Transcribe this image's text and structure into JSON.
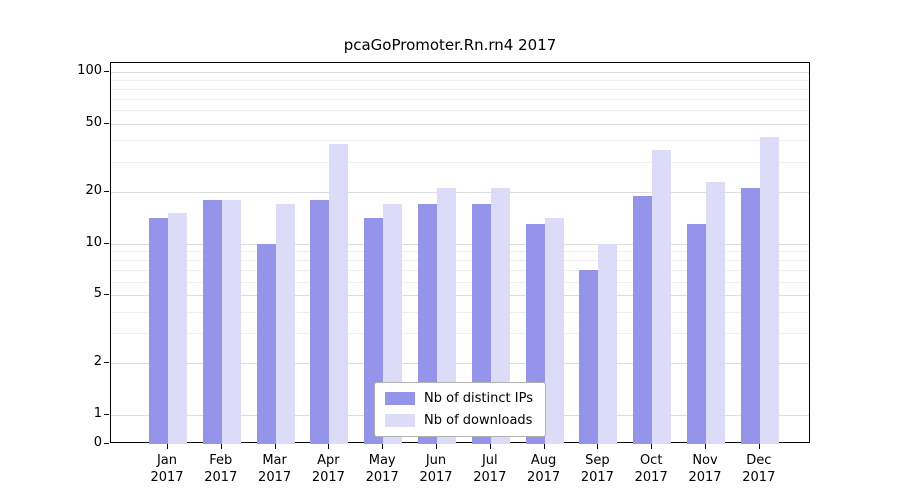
{
  "title": "pcaGoPromoter.Rn.rn4 2017",
  "chart_data": {
    "type": "bar",
    "title": "pcaGoPromoter.Rn.rn4 2017",
    "categories": [
      "Jan",
      "Feb",
      "Mar",
      "Apr",
      "May",
      "Jun",
      "Jul",
      "Aug",
      "Sep",
      "Oct",
      "Nov",
      "Dec"
    ],
    "year": "2017",
    "series": [
      {
        "name": "Nb of distinct IPs",
        "color": "#9494ea",
        "values": [
          14,
          18,
          10,
          18,
          14,
          17,
          17,
          13,
          7,
          19,
          13,
          21
        ]
      },
      {
        "name": "Nb of downloads",
        "color": "#dcdcf9",
        "values": [
          15,
          18,
          17,
          38,
          17,
          21,
          21,
          14,
          10,
          35,
          23,
          42
        ]
      }
    ],
    "xlabel": "",
    "ylabel": "",
    "yticks": [
      0,
      1,
      2,
      5,
      10,
      20,
      50,
      100
    ],
    "ymax": 100,
    "scale": "log-with-zero-baseline",
    "grid": "horizontal, log minor + major, light gray",
    "legend_position": "bottom-center-inside"
  },
  "colors": {
    "major_grid": "#dcdcdc",
    "minor_grid": "#efefef",
    "axis": "#000000",
    "background": "#ffffff"
  }
}
